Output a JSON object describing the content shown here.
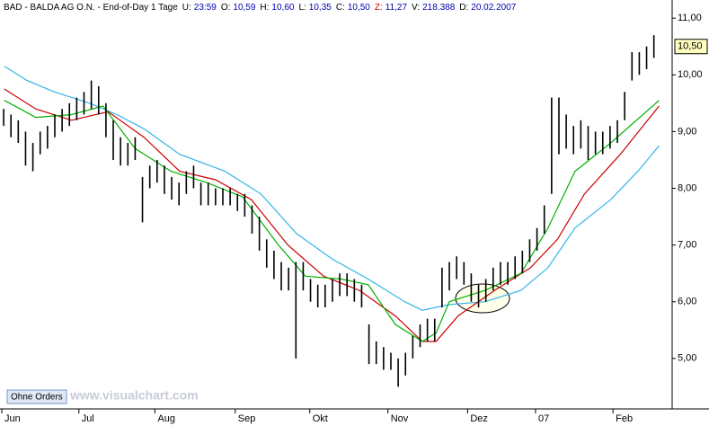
{
  "header": {
    "symbol": "BAD - BALDA AG O.N. - End-of-Day 1 Tage",
    "fields": [
      {
        "label": "U:",
        "value": "23:59"
      },
      {
        "label": "O:",
        "value": "10,59"
      },
      {
        "label": "H:",
        "value": "10,60"
      },
      {
        "label": "L:",
        "value": "10,35"
      },
      {
        "label": "C:",
        "value": "10,50"
      },
      {
        "label": "Z:",
        "value": "11,27"
      },
      {
        "label": "V:",
        "value": "218.388"
      },
      {
        "label": "D:",
        "value": "20.02.2007"
      }
    ]
  },
  "button": "Ohne Orders",
  "watermark": "www.visualchart.com",
  "chart_data": {
    "type": "ohlc",
    "high": [
      9.4,
      9.3,
      9.2,
      9.0,
      8.8,
      9.0,
      9.1,
      9.3,
      9.4,
      9.5,
      9.6,
      9.7,
      9.9,
      9.8,
      9.5,
      9.2,
      8.9,
      8.8,
      8.9,
      8.2,
      8.4,
      8.5,
      8.4,
      8.2,
      8.1,
      8.3,
      8.4,
      8.1,
      8.1,
      8.0,
      8.0,
      8.0,
      7.9,
      7.9,
      7.7,
      7.5,
      7.1,
      6.9,
      6.7,
      6.6,
      6.7,
      6.7,
      6.4,
      6.3,
      6.3,
      6.4,
      6.5,
      6.5,
      6.4,
      6.3,
      5.6,
      5.3,
      5.2,
      5.1,
      5.0,
      5.1,
      5.4,
      5.6,
      5.7,
      5.7,
      6.6,
      6.7,
      6.8,
      6.7,
      6.5,
      6.3,
      6.4,
      6.6,
      6.7,
      6.7,
      6.8,
      6.9,
      7.1,
      7.3,
      7.7,
      9.6,
      9.6,
      9.3,
      9.1,
      9.2,
      9.1,
      9.0,
      9.0,
      9.1,
      9.2,
      9.7,
      10.4,
      10.4,
      10.5,
      10.7
    ],
    "low": [
      9.1,
      8.9,
      8.8,
      8.4,
      8.3,
      8.6,
      8.7,
      8.9,
      9.0,
      9.1,
      9.2,
      9.3,
      9.4,
      9.3,
      8.9,
      8.5,
      8.4,
      8.4,
      8.5,
      7.4,
      8.0,
      8.1,
      7.9,
      7.8,
      7.7,
      7.9,
      8.0,
      7.7,
      7.7,
      7.7,
      7.7,
      7.7,
      7.6,
      7.5,
      7.2,
      6.9,
      6.6,
      6.4,
      6.2,
      6.2,
      5.0,
      6.2,
      6.0,
      5.9,
      5.9,
      6.0,
      6.1,
      6.1,
      6.0,
      5.9,
      4.9,
      4.9,
      4.8,
      4.8,
      4.5,
      4.7,
      5.0,
      5.2,
      5.3,
      5.3,
      5.9,
      6.2,
      6.4,
      6.3,
      6.0,
      5.9,
      6.0,
      6.2,
      6.3,
      6.3,
      6.4,
      6.5,
      6.7,
      6.9,
      7.2,
      7.9,
      8.6,
      8.7,
      8.6,
      8.7,
      8.5,
      8.6,
      8.6,
      8.7,
      8.8,
      9.2,
      9.9,
      10.0,
      10.1,
      10.3
    ],
    "lines": [
      {
        "color": "#33b5e8",
        "x": [
          0.1,
          3.2,
          6.9,
          11.8,
          15.5,
          19.2,
          24.1,
          30.3,
          35.2,
          40.1,
          45,
          49.9,
          54.9,
          57.3,
          61,
          65.9,
          70.8,
          74.5,
          78.2,
          83.1,
          86.8,
          89.7
        ],
        "values": [
          10.15,
          9.9,
          9.7,
          9.5,
          9.3,
          9.05,
          8.6,
          8.3,
          7.9,
          7.2,
          6.75,
          6.4,
          6.0,
          5.85,
          5.95,
          6.0,
          6.2,
          6.6,
          7.3,
          7.8,
          8.3,
          8.75
        ]
      },
      {
        "color": "#cc0000",
        "x": [
          0.1,
          4.4,
          9.3,
          14.3,
          19.2,
          24.1,
          29.0,
          33.9,
          38.9,
          43.8,
          48.7,
          53.6,
          57.3,
          59.2,
          62.2,
          67.2,
          72.1,
          75.8,
          79.5,
          84.4,
          89.7
        ],
        "values": [
          9.75,
          9.4,
          9.2,
          9.35,
          8.9,
          8.3,
          8.15,
          7.8,
          7.0,
          6.45,
          6.2,
          5.75,
          5.3,
          5.3,
          5.75,
          6.2,
          6.6,
          7.1,
          7.9,
          8.6,
          9.45
        ]
      },
      {
        "color": "#00b000",
        "x": [
          0.1,
          4.4,
          9.3,
          13.6,
          18,
          22.9,
          27.8,
          32.7,
          37.6,
          41.3,
          46.2,
          49.9,
          53.6,
          57.3,
          59.2,
          61,
          65.9,
          70.8,
          74.5,
          78.2,
          83.1,
          89.7
        ],
        "values": [
          9.55,
          9.25,
          9.3,
          9.45,
          8.7,
          8.3,
          8.1,
          7.85,
          7.0,
          6.45,
          6.4,
          6.3,
          5.6,
          5.3,
          5.45,
          6.0,
          6.2,
          6.5,
          7.3,
          8.3,
          8.8,
          9.55
        ]
      }
    ],
    "last_price": {
      "value": 10.5,
      "label": "10,50"
    },
    "xlim": [
      -0.5,
      91.5
    ],
    "xticks": [
      {
        "value": -0.25,
        "label": "Jun"
      },
      {
        "value": 10.3,
        "label": "Jul"
      },
      {
        "value": 20.7,
        "label": "Aug"
      },
      {
        "value": 31.7,
        "label": "Sep"
      },
      {
        "value": 41.9,
        "label": "Okt"
      },
      {
        "value": 52.6,
        "label": "Nov"
      },
      {
        "value": 63.5,
        "label": "Dez"
      },
      {
        "value": 72.8,
        "label": "07"
      },
      {
        "value": 83.4,
        "label": "Feb"
      }
    ],
    "ylim": [
      4.11,
      11.32
    ],
    "yticks": [
      {
        "value": 11,
        "label": "11,00"
      },
      {
        "value": 10,
        "label": "10,00"
      },
      {
        "value": 9,
        "label": "9,00"
      },
      {
        "value": 8,
        "label": "8,00"
      },
      {
        "value": 7,
        "label": "7,00"
      },
      {
        "value": 6,
        "label": "6,00"
      },
      {
        "value": 5,
        "label": "5,00"
      }
    ]
  }
}
